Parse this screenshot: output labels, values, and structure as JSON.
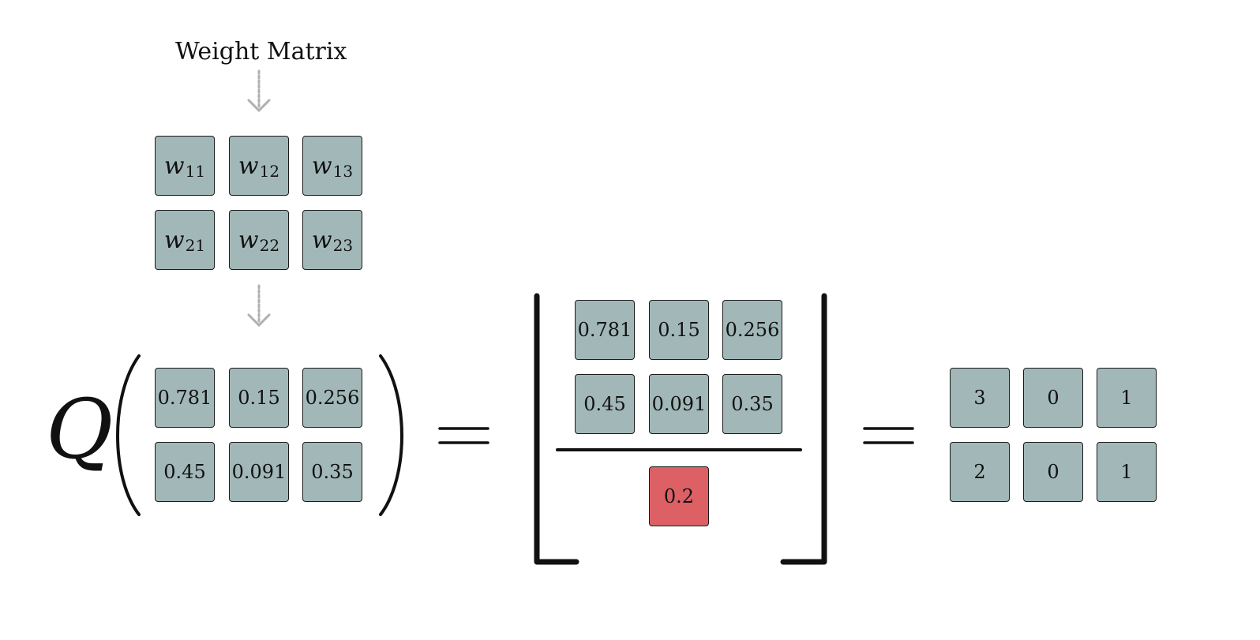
{
  "title": "Weight Matrix",
  "function_symbol": "Q",
  "weight_matrix": [
    [
      {
        "var": "w",
        "sub": "11"
      },
      {
        "var": "w",
        "sub": "12"
      },
      {
        "var": "w",
        "sub": "13"
      }
    ],
    [
      {
        "var": "w",
        "sub": "21"
      },
      {
        "var": "w",
        "sub": "22"
      },
      {
        "var": "w",
        "sub": "23"
      }
    ]
  ],
  "input_values": [
    [
      "0.781",
      "0.15",
      "0.256"
    ],
    [
      "0.45",
      "0.091",
      "0.35"
    ]
  ],
  "numerator_values": [
    [
      "0.781",
      "0.15",
      "0.256"
    ],
    [
      "0.45",
      "0.091",
      "0.35"
    ]
  ],
  "denominator_value": "0.2",
  "result_values": [
    [
      "3",
      "0",
      "1"
    ],
    [
      "2",
      "0",
      "1"
    ]
  ],
  "colors": {
    "cell_fill": "#a2b8b8",
    "highlight_fill": "#dc6064",
    "arrow": "#b0b0b0",
    "stroke": "#1a1a1a"
  }
}
